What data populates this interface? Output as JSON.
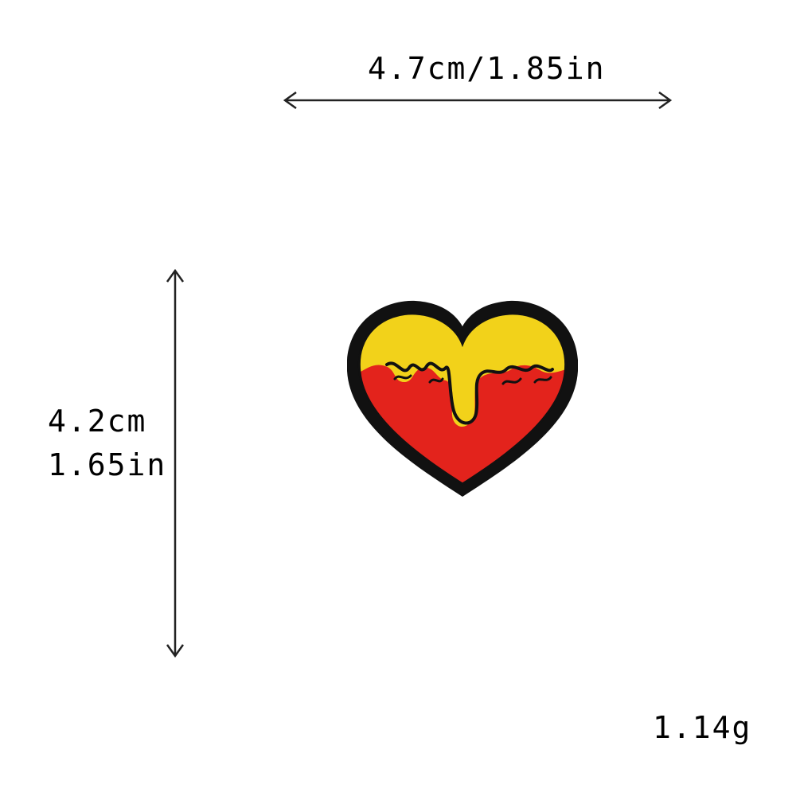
{
  "dimensions": {
    "width_label": "4.7cm/1.85in",
    "height_label_cm": "4.2cm",
    "height_label_in": "1.65in",
    "weight_label": "1.14g"
  },
  "patch": {
    "shape": "heart",
    "colors": {
      "border": "#111111",
      "top": "#f2d21a",
      "bottom": "#e3231c",
      "stitch_text": "#111111"
    }
  }
}
